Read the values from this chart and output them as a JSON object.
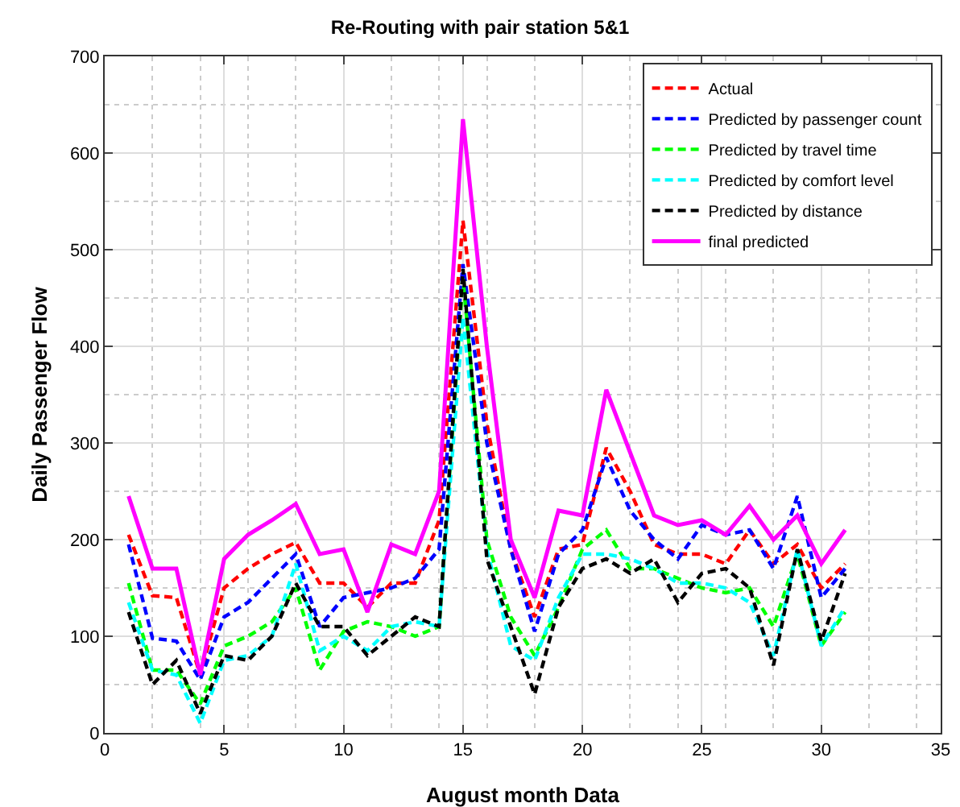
{
  "chart_data": {
    "type": "line",
    "title": "Re-Routing with pair station 5&1",
    "xlabel": "August month Data",
    "ylabel": "Daily Passenger Flow",
    "x": [
      1,
      2,
      3,
      4,
      5,
      6,
      7,
      8,
      9,
      10,
      11,
      12,
      13,
      14,
      15,
      16,
      17,
      18,
      19,
      20,
      21,
      22,
      23,
      24,
      25,
      26,
      27,
      28,
      29,
      30,
      31
    ],
    "xlim": [
      0,
      35
    ],
    "xticks": [
      0,
      5,
      10,
      15,
      20,
      25,
      30,
      35
    ],
    "ylim": [
      0,
      700
    ],
    "yticks": [
      0,
      100,
      200,
      300,
      400,
      500,
      600,
      700
    ],
    "grid": true,
    "legend": "top right",
    "marker": "none",
    "series": [
      {
        "name": "Actual",
        "color": "#ff0000",
        "line_style": "dashed",
        "values": [
          205,
          142,
          140,
          60,
          150,
          170,
          185,
          197,
          155,
          155,
          130,
          155,
          155,
          220,
          530,
          320,
          190,
          120,
          190,
          195,
          295,
          250,
          195,
          185,
          185,
          175,
          210,
          175,
          195,
          150,
          175
        ]
      },
      {
        "name": "Predicted by passenger count",
        "color": "#0000ff",
        "line_style": "dashed",
        "values": [
          195,
          98,
          95,
          55,
          120,
          135,
          160,
          185,
          110,
          140,
          145,
          150,
          160,
          190,
          485,
          300,
          190,
          105,
          185,
          210,
          285,
          230,
          200,
          180,
          215,
          205,
          210,
          170,
          245,
          140,
          170
        ]
      },
      {
        "name": "Predicted by travel time",
        "color": "#00ff00",
        "line_style": "dashed",
        "values": [
          155,
          65,
          65,
          30,
          90,
          100,
          115,
          150,
          65,
          105,
          115,
          110,
          100,
          110,
          470,
          200,
          120,
          80,
          130,
          190,
          210,
          170,
          170,
          160,
          150,
          145,
          150,
          110,
          185,
          90,
          125
        ]
      },
      {
        "name": "Predicted by comfort level",
        "color": "#00ffff",
        "line_style": "dashed",
        "values": [
          135,
          65,
          60,
          10,
          75,
          80,
          100,
          175,
          85,
          100,
          85,
          110,
          115,
          110,
          430,
          190,
          90,
          75,
          140,
          185,
          185,
          180,
          170,
          155,
          155,
          150,
          135,
          80,
          190,
          90,
          130
        ]
      },
      {
        "name": "Predicted by distance",
        "color": "#000000",
        "line_style": "dashed",
        "values": [
          125,
          50,
          75,
          20,
          80,
          75,
          100,
          155,
          110,
          110,
          80,
          100,
          120,
          110,
          480,
          180,
          110,
          40,
          130,
          170,
          180,
          165,
          180,
          135,
          165,
          170,
          150,
          70,
          190,
          95,
          165
        ]
      },
      {
        "name": "final predicted",
        "color": "#ff00ff",
        "line_style": "solid",
        "values": [
          245,
          170,
          170,
          60,
          180,
          205,
          220,
          237,
          185,
          190,
          125,
          195,
          185,
          250,
          635,
          400,
          200,
          140,
          230,
          225,
          355,
          290,
          225,
          215,
          220,
          205,
          235,
          200,
          225,
          175,
          210
        ]
      }
    ]
  }
}
